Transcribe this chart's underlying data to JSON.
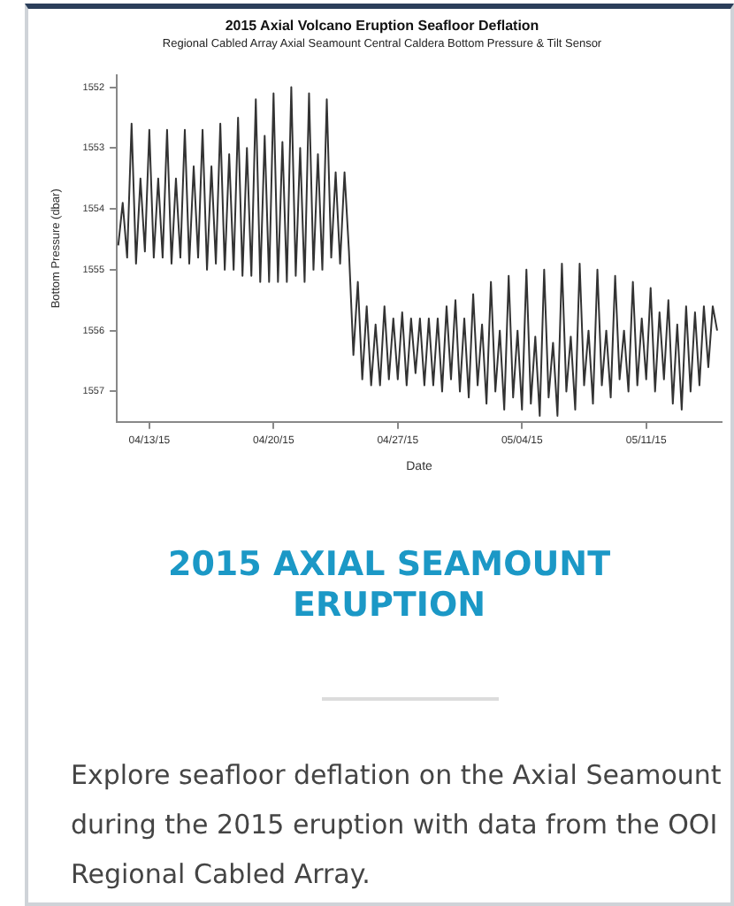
{
  "chart_data": {
    "type": "line",
    "title": "2015 Axial Volcano Eruption Seafloor Deflation",
    "subtitle": "Regional Cabled Array Axial Seamount Central Caldera Bottom Pressure & Tilt Sensor",
    "xlabel": "Date",
    "ylabel": "Bottom Pressure (dbar)",
    "xlim": [
      "2015-04-11T04:00",
      "2015-05-15T06:00"
    ],
    "xticks": [
      {
        "value": "2015-04-13",
        "label": "04/13/15"
      },
      {
        "value": "2015-04-20",
        "label": "04/20/15"
      },
      {
        "value": "2015-04-27",
        "label": "04/27/15"
      },
      {
        "value": "2015-05-04",
        "label": "05/04/15"
      },
      {
        "value": "2015-05-11",
        "label": "05/11/15"
      }
    ],
    "ylim": [
      1557.5,
      1551.8
    ],
    "yticks": [
      1552,
      1553,
      1554,
      1555,
      1556,
      1557
    ],
    "grid": false,
    "legend": false,
    "marker": "none",
    "line_style": "solid",
    "annotations": [
      "2015 AXIAL SEAMOUNT ERUPTION",
      "Explore seafloor deflation on the Axial Seamount during the 2015 eruption with data from the OOI Regional Cabled Array."
    ],
    "series": [
      {
        "color": "#333333",
        "x": [
          "2015-04-11T06:00",
          "2015-04-11T12:00",
          "2015-04-11T18:00",
          "2015-04-12T00:00",
          "2015-04-12T06:00",
          "2015-04-12T12:00",
          "2015-04-12T18:00",
          "2015-04-13T00:00",
          "2015-04-13T06:00",
          "2015-04-13T12:00",
          "2015-04-13T18:00",
          "2015-04-14T00:00",
          "2015-04-14T06:00",
          "2015-04-14T12:00",
          "2015-04-14T18:00",
          "2015-04-15T00:00",
          "2015-04-15T06:00",
          "2015-04-15T12:00",
          "2015-04-15T18:00",
          "2015-04-16T00:00",
          "2015-04-16T06:00",
          "2015-04-16T12:00",
          "2015-04-16T18:00",
          "2015-04-17T00:00",
          "2015-04-17T06:00",
          "2015-04-17T12:00",
          "2015-04-17T18:00",
          "2015-04-18T00:00",
          "2015-04-18T06:00",
          "2015-04-18T12:00",
          "2015-04-18T18:00",
          "2015-04-19T00:00",
          "2015-04-19T06:00",
          "2015-04-19T12:00",
          "2015-04-19T18:00",
          "2015-04-20T00:00",
          "2015-04-20T06:00",
          "2015-04-20T12:00",
          "2015-04-20T18:00",
          "2015-04-21T00:00",
          "2015-04-21T06:00",
          "2015-04-21T12:00",
          "2015-04-21T18:00",
          "2015-04-22T00:00",
          "2015-04-22T06:00",
          "2015-04-22T12:00",
          "2015-04-22T18:00",
          "2015-04-23T00:00",
          "2015-04-23T06:00",
          "2015-04-23T12:00",
          "2015-04-23T18:00",
          "2015-04-24T00:00",
          "2015-04-24T06:00",
          "2015-04-24T12:00",
          "2015-04-24T18:00",
          "2015-04-25T00:00",
          "2015-04-25T06:00",
          "2015-04-25T12:00",
          "2015-04-25T18:00",
          "2015-04-26T00:00",
          "2015-04-26T06:00",
          "2015-04-26T12:00",
          "2015-04-26T18:00",
          "2015-04-27T00:00",
          "2015-04-27T06:00",
          "2015-04-27T12:00",
          "2015-04-27T18:00",
          "2015-04-28T00:00",
          "2015-04-28T06:00",
          "2015-04-28T12:00",
          "2015-04-28T18:00",
          "2015-04-29T00:00",
          "2015-04-29T06:00",
          "2015-04-29T12:00",
          "2015-04-29T18:00",
          "2015-04-30T00:00",
          "2015-04-30T06:00",
          "2015-04-30T12:00",
          "2015-04-30T18:00",
          "2015-05-01T00:00",
          "2015-05-01T06:00",
          "2015-05-01T12:00",
          "2015-05-01T18:00",
          "2015-05-02T00:00",
          "2015-05-02T06:00",
          "2015-05-02T12:00",
          "2015-05-02T18:00",
          "2015-05-03T00:00",
          "2015-05-03T06:00",
          "2015-05-03T12:00",
          "2015-05-03T18:00",
          "2015-05-04T00:00",
          "2015-05-04T06:00",
          "2015-05-04T12:00",
          "2015-05-04T18:00",
          "2015-05-05T00:00",
          "2015-05-05T06:00",
          "2015-05-05T12:00",
          "2015-05-05T18:00",
          "2015-05-06T00:00",
          "2015-05-06T06:00",
          "2015-05-06T12:00",
          "2015-05-06T18:00",
          "2015-05-07T00:00",
          "2015-05-07T06:00",
          "2015-05-07T12:00",
          "2015-05-07T18:00",
          "2015-05-08T00:00",
          "2015-05-08T06:00",
          "2015-05-08T12:00",
          "2015-05-08T18:00",
          "2015-05-09T00:00",
          "2015-05-09T06:00",
          "2015-05-09T12:00",
          "2015-05-09T18:00",
          "2015-05-10T00:00",
          "2015-05-10T06:00",
          "2015-05-10T12:00",
          "2015-05-10T18:00",
          "2015-05-11T00:00",
          "2015-05-11T06:00",
          "2015-05-11T12:00",
          "2015-05-11T18:00",
          "2015-05-12T00:00",
          "2015-05-12T06:00",
          "2015-05-12T12:00",
          "2015-05-12T18:00",
          "2015-05-13T00:00",
          "2015-05-13T06:00",
          "2015-05-13T12:00",
          "2015-05-13T18:00",
          "2015-05-14T00:00",
          "2015-05-14T06:00",
          "2015-05-14T12:00",
          "2015-05-14T18:00",
          "2015-05-15T00:00"
        ],
        "values": [
          1554.6,
          1553.9,
          1554.8,
          1552.6,
          1554.9,
          1553.5,
          1554.7,
          1552.7,
          1554.8,
          1553.5,
          1554.8,
          1552.7,
          1554.9,
          1553.5,
          1554.8,
          1552.7,
          1554.9,
          1553.3,
          1554.8,
          1552.7,
          1555.0,
          1553.3,
          1554.9,
          1552.6,
          1555.0,
          1553.1,
          1555.0,
          1552.5,
          1555.1,
          1553.0,
          1555.1,
          1552.2,
          1555.2,
          1552.8,
          1555.2,
          1552.1,
          1555.2,
          1552.9,
          1555.2,
          1552.0,
          1555.1,
          1553.0,
          1555.2,
          1552.1,
          1555.0,
          1553.1,
          1555.0,
          1552.2,
          1554.8,
          1553.4,
          1554.9,
          1553.4,
          1554.7,
          1556.4,
          1555.2,
          1556.8,
          1555.6,
          1556.9,
          1555.9,
          1556.9,
          1555.6,
          1556.8,
          1555.8,
          1556.8,
          1555.7,
          1556.9,
          1555.8,
          1556.7,
          1555.8,
          1556.9,
          1555.8,
          1556.9,
          1555.8,
          1557.0,
          1555.6,
          1556.8,
          1555.5,
          1557.0,
          1555.8,
          1557.1,
          1555.4,
          1556.9,
          1555.9,
          1557.2,
          1555.2,
          1557.0,
          1556.0,
          1557.3,
          1555.1,
          1557.1,
          1556.0,
          1557.3,
          1555.0,
          1557.2,
          1556.1,
          1557.4,
          1555.0,
          1557.1,
          1556.2,
          1557.4,
          1554.9,
          1557.0,
          1556.1,
          1557.3,
          1554.9,
          1556.9,
          1556.0,
          1557.2,
          1555.0,
          1556.9,
          1556.0,
          1557.1,
          1555.1,
          1556.8,
          1556.0,
          1557.0,
          1555.2,
          1556.9,
          1555.8,
          1556.8,
          1555.3,
          1557.0,
          1555.7,
          1556.8,
          1555.5,
          1557.2,
          1555.9,
          1557.3,
          1555.6,
          1557.0,
          1555.7,
          1556.9,
          1555.6,
          1556.6,
          1555.6,
          1556.0
        ]
      }
    ]
  }
}
